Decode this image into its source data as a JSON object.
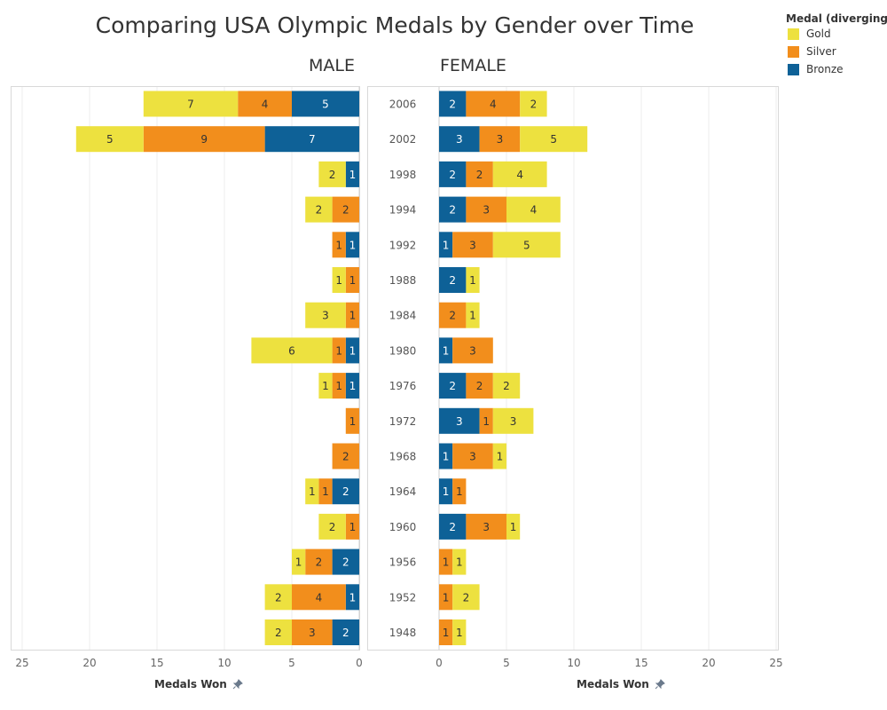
{
  "chart_data": {
    "type": "bar",
    "title": "Comparing USA Olympic Medals by Gender over Time",
    "legend": {
      "title": "Medal (diverging..",
      "placement": "top-right",
      "items": [
        {
          "name": "Gold",
          "color": "#EDE13F"
        },
        {
          "name": "Silver",
          "color": "#F28E1C"
        },
        {
          "name": "Bronze",
          "color": "#0E6197"
        }
      ]
    },
    "years": [
      "2006",
      "2002",
      "1998",
      "1994",
      "1992",
      "1988",
      "1984",
      "1980",
      "1976",
      "1972",
      "1968",
      "1964",
      "1960",
      "1956",
      "1952",
      "1948"
    ],
    "panels": [
      {
        "name": "MALE",
        "xlabel": "Medals Won",
        "xlim": [
          0,
          25
        ],
        "reversed": true,
        "ticks": [
          25,
          20,
          15,
          10,
          5,
          0
        ],
        "bronze": [
          5,
          7,
          1,
          0,
          1,
          0,
          0,
          1,
          1,
          0,
          0,
          2,
          0,
          2,
          1,
          2
        ],
        "silver": [
          4,
          9,
          0,
          2,
          1,
          1,
          1,
          1,
          1,
          1,
          2,
          1,
          1,
          2,
          4,
          3
        ],
        "gold": [
          7,
          5,
          2,
          2,
          0,
          1,
          3,
          6,
          1,
          0,
          0,
          1,
          2,
          1,
          2,
          2
        ]
      },
      {
        "name": "FEMALE",
        "xlabel": "Medals Won",
        "xlim": [
          0,
          25
        ],
        "reversed": false,
        "ticks": [
          0,
          5,
          10,
          15,
          20,
          25
        ],
        "bronze": [
          2,
          3,
          2,
          2,
          1,
          2,
          0,
          1,
          2,
          3,
          1,
          1,
          2,
          0,
          0,
          0
        ],
        "silver": [
          4,
          3,
          2,
          3,
          3,
          0,
          2,
          3,
          2,
          1,
          3,
          1,
          3,
          1,
          1,
          1
        ],
        "gold": [
          2,
          5,
          4,
          4,
          5,
          1,
          1,
          0,
          2,
          3,
          1,
          0,
          1,
          1,
          2,
          1
        ]
      }
    ],
    "grid": true
  }
}
